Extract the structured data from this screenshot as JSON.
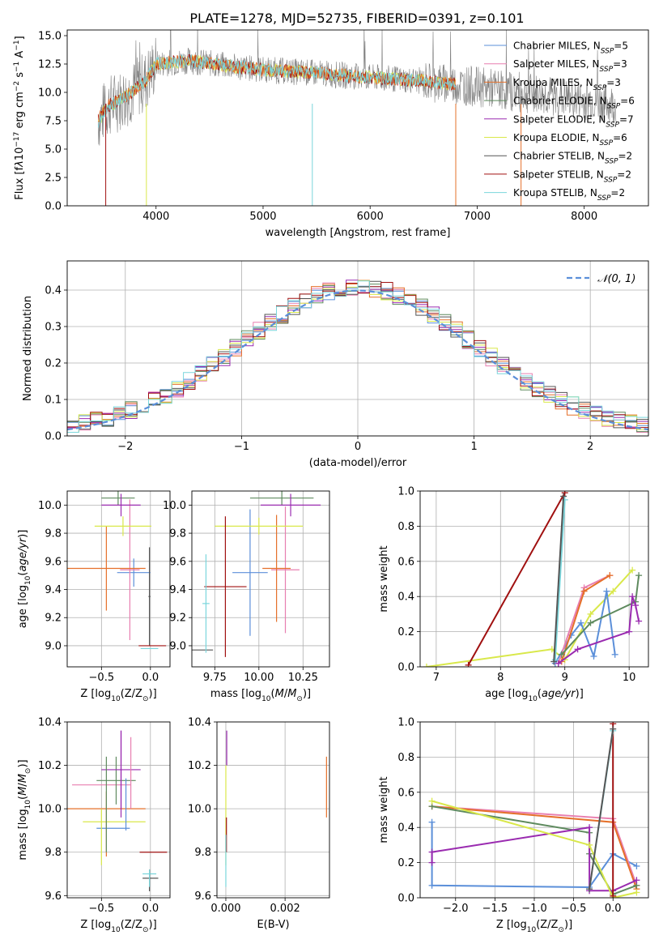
{
  "figure": {
    "title": "PLATE=1278, MJD=52735, FIBERID=0391, z=0.101"
  },
  "legend_entries": [
    {
      "key": "chabrier_miles",
      "name": "Chabrier MILES, N<sub>SSP</sub>=5",
      "color": "#5b8fd9"
    },
    {
      "key": "salpeter_miles",
      "name": "Salpeter MILES, N<sub>SSP</sub>=3",
      "color": "#e87fb0"
    },
    {
      "key": "kroupa_miles",
      "name": "Kroupa MILES, N<sub>SSP</sub>=3",
      "color": "#e5702a"
    },
    {
      "key": "chabrier_elodie",
      "name": "Chabrier ELODIE, N<sub>SSP</sub>=6",
      "color": "#5e8a5e"
    },
    {
      "key": "salpeter_elodie",
      "name": "Salpeter ELODIE, N<sub>SSP</sub>=7",
      "color": "#9a2bb0"
    },
    {
      "key": "kroupa_elodie",
      "name": "Kroupa ELODIE, N<sub>SSP</sub>=6",
      "color": "#d9e84a"
    },
    {
      "key": "chabrier_stelib",
      "name": "Chabrier STELIB, N<sub>SSP</sub>=2",
      "color": "#555555"
    },
    {
      "key": "salpeter_stelib",
      "name": "Salpeter STELIB, N<sub>SSP</sub>=2",
      "color": "#a01010"
    },
    {
      "key": "kroupa_stelib",
      "name": "Kroupa STELIB, N<sub>SSP</sub>=2",
      "color": "#7ad6dc"
    }
  ],
  "chart_data": [
    {
      "id": "spectrum",
      "type": "line",
      "title": "PLATE=1278, MJD=52735, FIBERID=0391, z=0.101",
      "xlabel": "wavelength [Angstrom, rest frame]",
      "ylabel": "Flux [f<tspan font-style='italic'>λ</tspan>10<tspan baseline-shift='super' font-size='9'>−17</tspan> erg cm<tspan baseline-shift='super' font-size='9'>−2</tspan> s<tspan baseline-shift='super' font-size='9'>−1</tspan> A<tspan baseline-shift='super' font-size='9'>−1</tspan>]",
      "xlim": [
        3170,
        8600
      ],
      "ylim": [
        0,
        15.5
      ],
      "xticks": [
        4000,
        5000,
        6000,
        7000,
        8000
      ],
      "yticks": [
        0.0,
        2.5,
        5.0,
        7.5,
        10.0,
        12.5,
        15.0
      ],
      "data_color": "#808080",
      "data_envelope": {
        "x": [
          3460,
          3550,
          3700,
          3900,
          4000,
          4300,
          4700,
          5000,
          5500,
          6000,
          6500,
          7000,
          7400,
          8000,
          8300
        ],
        "y": [
          7.5,
          8.8,
          9.5,
          11.0,
          12.5,
          12.8,
          12.3,
          12.0,
          11.7,
          11.3,
          11.0,
          10.5,
          10.0,
          9.3,
          8.8
        ]
      },
      "model_color": "#7ad6dc",
      "model_x": [
        3460,
        3550,
        3700,
        3900,
        4000,
        4300,
        4700,
        5000,
        5500,
        6000,
        6500,
        6800
      ],
      "model_y": [
        7.5,
        8.8,
        9.5,
        11.0,
        12.5,
        12.8,
        12.3,
        12.0,
        11.7,
        11.3,
        11.0,
        10.7
      ],
      "legend_placement": "top-right",
      "grid": false
    },
    {
      "id": "residual_hist",
      "type": "line",
      "xlabel": "(data-model)/error",
      "ylabel": "Normed distribution",
      "xlim": [
        -2.5,
        2.5
      ],
      "ylim": [
        0,
        0.48
      ],
      "xticks": [
        -2,
        -1,
        0,
        1,
        2
      ],
      "yticks": [
        0.0,
        0.1,
        0.2,
        0.3,
        0.4
      ],
      "gaussian_label": "𝒩(0, 1)",
      "gaussian_color": "#5b8fd9",
      "bin_width": 0.1,
      "hist_profile": [
        0.03,
        0.032,
        0.036,
        0.04,
        0.045,
        0.05,
        0.057,
        0.064,
        0.072,
        0.08,
        0.09,
        0.1,
        0.112,
        0.125,
        0.138,
        0.152,
        0.167,
        0.182,
        0.198,
        0.214,
        0.23,
        0.246,
        0.262,
        0.278,
        0.293,
        0.307,
        0.32,
        0.332,
        0.343,
        0.353,
        0.362,
        0.37,
        0.377,
        0.383,
        0.389,
        0.394,
        0.398,
        0.401,
        0.404,
        0.406,
        0.408,
        0.409,
        0.41,
        0.41,
        0.409,
        0.408,
        0.406,
        0.404,
        0.401,
        0.398
      ],
      "grid": true,
      "legend_placement": "top-right"
    },
    {
      "id": "age_vs_Z",
      "type": "scatter",
      "xlabel": "Z [log<tspan baseline-shift='sub' font-size='9'>10</tspan>(Z/Z<tspan baseline-shift='sub' font-size='9'>⊙</tspan>)]",
      "ylabel": "age  [log<tspan baseline-shift='sub' font-size='9'>10</tspan>(<tspan font-style='italic'>age/yr</tspan>)]",
      "xlim": [
        -0.85,
        0.2
      ],
      "ylim": [
        8.85,
        10.1
      ],
      "xticks": [
        -0.5,
        0.0
      ],
      "yticks": [
        9.0,
        9.2,
        9.4,
        9.6,
        9.8,
        10.0
      ],
      "points": [
        {
          "s": "chabrier_miles",
          "x": -0.17,
          "y": 9.52,
          "xe": 0.17,
          "ye": 0.1
        },
        {
          "s": "salpeter_miles",
          "x": -0.21,
          "y": 9.54,
          "xe": 0.1,
          "ye": 0.5
        },
        {
          "s": "kroupa_miles",
          "x": -0.45,
          "y": 9.55,
          "xe": 0.4,
          "ye": 0.3
        },
        {
          "s": "chabrier_elodie",
          "x": -0.33,
          "y": 10.05,
          "xe": 0.17,
          "ye": 0.05
        },
        {
          "s": "salpeter_elodie",
          "x": -0.3,
          "y": 10.0,
          "xe": 0.2,
          "ye": 0.08
        },
        {
          "s": "kroupa_elodie",
          "x": -0.28,
          "y": 9.85,
          "xe": 0.29,
          "ye": 0.07
        },
        {
          "s": "chabrier_stelib",
          "x": -0.01,
          "y": 9.35,
          "xe": 0.01,
          "ye": 0.35
        },
        {
          "s": "salpeter_stelib",
          "x": 0.02,
          "y": 9.0,
          "xe": 0.14,
          "ye": 0.0
        },
        {
          "s": "kroupa_stelib",
          "x": -0.01,
          "y": 8.98,
          "xe": 0.09,
          "ye": 0.0
        }
      ],
      "grid": true
    },
    {
      "id": "age_vs_mass",
      "type": "scatter",
      "xlabel": "mass [log<tspan baseline-shift='sub' font-size='9'>10</tspan>(<tspan font-style='italic'>M</tspan>/<tspan font-style='italic'>M</tspan><tspan baseline-shift='sub' font-size='9'>⊙</tspan>)]",
      "xlim": [
        9.62,
        10.4
      ],
      "ylim": [
        8.85,
        10.1
      ],
      "xticks": [
        9.75,
        10.0,
        10.25
      ],
      "yticks": [
        9.0,
        9.2,
        9.4,
        9.6,
        9.8,
        10.0
      ],
      "points": [
        {
          "s": "chabrier_miles",
          "x": 9.95,
          "y": 9.52,
          "xe": 0.1,
          "ye": 0.45
        },
        {
          "s": "salpeter_miles",
          "x": 10.15,
          "y": 9.54,
          "xe": 0.08,
          "ye": 0.45
        },
        {
          "s": "kroupa_miles",
          "x": 10.1,
          "y": 9.55,
          "xe": 0.08,
          "ye": 0.38
        },
        {
          "s": "chabrier_elodie",
          "x": 10.13,
          "y": 10.05,
          "xe": 0.18,
          "ye": 0.05
        },
        {
          "s": "salpeter_elodie",
          "x": 10.18,
          "y": 10.0,
          "xe": 0.17,
          "ye": 0.08
        },
        {
          "s": "kroupa_elodie",
          "x": 10.0,
          "y": 9.85,
          "xe": 0.25,
          "ye": 0.06
        },
        {
          "s": "chabrier_stelib",
          "x": 9.68,
          "y": 8.97,
          "xe": 0.06,
          "ye": 0.0
        },
        {
          "s": "salpeter_stelib",
          "x": 9.81,
          "y": 9.42,
          "xe": 0.12,
          "ye": 0.5
        },
        {
          "s": "kroupa_stelib",
          "x": 9.7,
          "y": 9.3,
          "xe": 0.02,
          "ye": 0.35
        }
      ],
      "grid": true
    },
    {
      "id": "weight_vs_age",
      "type": "line",
      "xlabel": "age  [log<tspan baseline-shift='sub' font-size='9'>10</tspan>(<tspan font-style='italic'>age/yr</tspan>)]",
      "ylabel": "mass weight",
      "xlim": [
        6.75,
        10.3
      ],
      "ylim": [
        0,
        1.0
      ],
      "xticks": [
        7,
        8,
        9,
        10
      ],
      "yticks": [
        0.0,
        0.2,
        0.4,
        0.6,
        0.8,
        1.0
      ],
      "series": [
        {
          "s": "kroupa_elodie",
          "x": [
            6.85,
            8.8,
            9.0,
            9.4,
            9.75,
            10.05
          ],
          "y": [
            0.0,
            0.1,
            0.04,
            0.3,
            0.43,
            0.55
          ]
        },
        {
          "s": "chabrier_miles",
          "x": [
            8.85,
            9.1,
            9.25,
            9.45,
            9.65,
            9.78
          ],
          "y": [
            0.02,
            0.18,
            0.25,
            0.06,
            0.43,
            0.07
          ]
        },
        {
          "s": "salpeter_miles",
          "x": [
            8.9,
            9.3,
            9.7
          ],
          "y": [
            0.02,
            0.45,
            0.52
          ]
        },
        {
          "s": "kroupa_miles",
          "x": [
            8.95,
            9.3,
            9.7
          ],
          "y": [
            0.03,
            0.43,
            0.52
          ]
        },
        {
          "s": "chabrier_elodie",
          "x": [
            8.95,
            9.4,
            10.1,
            10.15
          ],
          "y": [
            0.07,
            0.25,
            0.37,
            0.52
          ]
        },
        {
          "s": "salpeter_elodie",
          "x": [
            8.9,
            9.2,
            10.0,
            10.05,
            10.1,
            10.15
          ],
          "y": [
            0.02,
            0.1,
            0.2,
            0.4,
            0.35,
            0.26
          ]
        },
        {
          "s": "salpeter_stelib",
          "x": [
            7.5,
            9.0
          ],
          "y": [
            0.01,
            0.99
          ]
        },
        {
          "s": "kroupa_stelib",
          "x": [
            8.85,
            9.0
          ],
          "y": [
            0.04,
            0.95
          ]
        },
        {
          "s": "chabrier_stelib",
          "x": [
            8.83,
            8.98
          ],
          "y": [
            0.03,
            0.97
          ]
        }
      ],
      "grid": true
    },
    {
      "id": "mass_vs_Z",
      "type": "scatter",
      "xlabel": "Z [log<tspan baseline-shift='sub' font-size='9'>10</tspan>(Z/Z<tspan baseline-shift='sub' font-size='9'>⊙</tspan>)]",
      "ylabel": "mass [log<tspan baseline-shift='sub' font-size='9'>10</tspan>(<tspan font-style='italic'>M</tspan>/<tspan font-style='italic'>M</tspan><tspan baseline-shift='sub' font-size='9'>⊙</tspan>)]",
      "xlim": [
        -0.85,
        0.2
      ],
      "ylim": [
        9.59,
        10.4
      ],
      "xticks": [
        -0.5,
        0.0
      ],
      "yticks": [
        9.6,
        9.8,
        10.0,
        10.2,
        10.4
      ],
      "points": [
        {
          "s": "chabrier_miles",
          "x": -0.38,
          "y": 9.91,
          "xe": 0.17,
          "ye": 0.0
        },
        {
          "s": "salpeter_miles",
          "x": -0.5,
          "y": 10.11,
          "xe": 0.3,
          "ye": 0.0
        },
        {
          "s": "kroupa_miles",
          "x": -0.45,
          "y": 10.0,
          "xe": 0.4,
          "ye": 0.0
        },
        {
          "s": "chabrier_elodie",
          "x": -0.35,
          "y": 10.13,
          "xe": 0.2,
          "ye": 0.11
        },
        {
          "s": "salpeter_elodie",
          "x": -0.3,
          "y": 10.18,
          "xe": 0.2,
          "ye": 0.18
        },
        {
          "s": "kroupa_elodie",
          "x": -0.37,
          "y": 9.94,
          "xe": 0.32,
          "ye": 0.0
        },
        {
          "s": "chabrier_stelib",
          "x": 0.0,
          "y": 9.68,
          "xe": 0.08,
          "ye": 0.0
        },
        {
          "s": "salpeter_stelib",
          "x": 0.03,
          "y": 9.8,
          "xe": 0.14,
          "ye": 0.0
        },
        {
          "s": "kroupa_stelib",
          "x": -0.01,
          "y": 9.7,
          "xe": 0.07,
          "ye": 0.0
        }
      ],
      "vlines": [
        {
          "s": "chabrier_miles",
          "x": -0.25,
          "y0": 9.9,
          "y1": 10.14
        },
        {
          "s": "salpeter_miles",
          "x": -0.2,
          "y0": 10.0,
          "y1": 10.33
        },
        {
          "s": "kroupa_miles",
          "x": -0.45,
          "y0": 9.78,
          "y1": 10.08
        },
        {
          "s": "chabrier_elodie",
          "x": -0.45,
          "y0": 9.8,
          "y1": 10.24
        },
        {
          "s": "salpeter_elodie",
          "x": -0.3,
          "y0": 9.96,
          "y1": 10.36
        },
        {
          "s": "kroupa_elodie",
          "x": -0.5,
          "y0": 9.74,
          "y1": 10.0
        },
        {
          "s": "chabrier_stelib",
          "x": -0.01,
          "y0": 9.62,
          "y1": 9.72
        },
        {
          "s": "kroupa_stelib",
          "x": -0.01,
          "y0": 9.64,
          "y1": 9.72
        }
      ],
      "grid": true
    },
    {
      "id": "mass_vs_ebv",
      "type": "scatter",
      "xlabel": "E(B-V)",
      "xlim": [
        -0.0003,
        0.0035
      ],
      "ylim": [
        9.59,
        10.4
      ],
      "xticks": [
        0.0,
        0.002
      ],
      "xticklabels": [
        "0.000",
        "0.002"
      ],
      "yticks": [
        9.6,
        9.8,
        10.0,
        10.2,
        10.4
      ],
      "vlines": [
        {
          "s": "salpeter_elodie",
          "x": 3e-05,
          "y0": 10.2,
          "y1": 10.36
        },
        {
          "s": "kroupa_elodie",
          "x": 0.0,
          "y0": 9.74,
          "y1": 10.2
        },
        {
          "s": "salpeter_stelib",
          "x": 2e-05,
          "y0": 9.8,
          "y1": 9.96
        },
        {
          "s": "kroupa_stelib",
          "x": 0.0,
          "y0": 9.64,
          "y1": 9.88
        },
        {
          "s": "kroupa_miles",
          "x": 0.0034,
          "y0": 9.96,
          "y1": 10.24
        }
      ],
      "grid": true
    },
    {
      "id": "weight_vs_Z",
      "type": "line",
      "xlabel": "Z [log<tspan baseline-shift='sub' font-size='9'>10</tspan>(Z/Z<tspan baseline-shift='sub' font-size='9'>⊙</tspan>)]",
      "ylabel": "mass weight",
      "xlim": [
        -2.45,
        0.45
      ],
      "ylim": [
        0,
        1.0
      ],
      "xticks": [
        -2.0,
        -1.5,
        -1.0,
        -0.5,
        0.0
      ],
      "yticks": [
        0.0,
        0.2,
        0.4,
        0.6,
        0.8,
        1.0
      ],
      "series": [
        {
          "s": "chabrier_miles",
          "x": [
            -2.3,
            -2.3,
            -0.3,
            0.0,
            0.3
          ],
          "y": [
            0.43,
            0.07,
            0.06,
            0.25,
            0.18
          ]
        },
        {
          "s": "salpeter_miles",
          "x": [
            -2.3,
            0.0,
            0.3
          ],
          "y": [
            0.52,
            0.45,
            0.07
          ]
        },
        {
          "s": "kroupa_miles",
          "x": [
            -2.3,
            0.0,
            0.3
          ],
          "y": [
            0.52,
            0.43,
            0.05
          ]
        },
        {
          "s": "chabrier_elodie",
          "x": [
            -2.3,
            -0.3,
            -0.3,
            0.0,
            0.3
          ],
          "y": [
            0.52,
            0.37,
            0.25,
            0.02,
            0.07
          ]
        },
        {
          "s": "salpeter_elodie",
          "x": [
            -2.3,
            -2.3,
            -0.3,
            -0.3,
            0.0,
            0.3
          ],
          "y": [
            0.2,
            0.26,
            0.4,
            0.04,
            0.04,
            0.1
          ]
        },
        {
          "s": "kroupa_elodie",
          "x": [
            -2.3,
            -0.3,
            0.0,
            0.3
          ],
          "y": [
            0.55,
            0.3,
            0.0,
            0.03
          ]
        },
        {
          "s": "salpeter_stelib",
          "x": [
            0.0,
            0.0
          ],
          "y": [
            0.01,
            0.99
          ]
        },
        {
          "s": "kroupa_stelib",
          "x": [
            -0.3,
            0.0
          ],
          "y": [
            0.05,
            0.95
          ]
        },
        {
          "s": "chabrier_stelib",
          "x": [
            -0.3,
            0.0
          ],
          "y": [
            0.05,
            0.96
          ]
        }
      ],
      "grid": true
    }
  ]
}
